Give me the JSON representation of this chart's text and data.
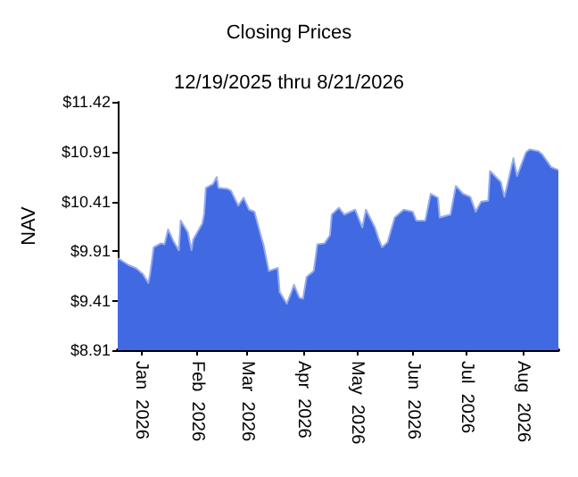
{
  "chart_data": {
    "type": "area",
    "title": "Closing Prices",
    "subtitle": "12/19/2025 thru 8/21/2026",
    "ylabel": "NAV",
    "x": [
      "2025-12-19",
      "2025-12-25",
      "2025-12-29",
      "2026-01-02",
      "2026-01-05",
      "2026-01-06",
      "2026-01-08",
      "2026-01-12",
      "2026-01-14",
      "2026-01-16",
      "2026-01-19",
      "2026-01-22",
      "2026-01-23",
      "2026-01-27",
      "2026-01-29",
      "2026-01-30",
      "2026-02-04",
      "2026-02-05",
      "2026-02-06",
      "2026-02-10",
      "2026-02-12",
      "2026-02-13",
      "2026-02-18",
      "2026-02-20",
      "2026-02-24",
      "2026-02-27",
      "2026-03-02",
      "2026-03-05",
      "2026-03-09",
      "2026-03-10",
      "2026-03-13",
      "2026-03-18",
      "2026-03-19",
      "2026-03-23",
      "2026-03-25",
      "2026-03-27",
      "2026-03-30",
      "2026-04-01",
      "2026-04-03",
      "2026-04-07",
      "2026-04-09",
      "2026-04-13",
      "2026-04-16",
      "2026-04-17",
      "2026-04-21",
      "2026-04-24",
      "2026-04-30",
      "2026-05-04",
      "2026-05-06",
      "2026-05-11",
      "2026-05-13",
      "2026-05-15",
      "2026-05-18",
      "2026-05-22",
      "2026-05-27",
      "2026-06-01",
      "2026-06-03",
      "2026-06-08",
      "2026-06-11",
      "2026-06-15",
      "2026-06-16",
      "2026-06-22",
      "2026-06-25",
      "2026-06-29",
      "2026-07-03",
      "2026-07-06",
      "2026-07-09",
      "2026-07-13",
      "2026-07-14",
      "2026-07-20",
      "2026-07-22",
      "2026-07-24",
      "2026-07-27",
      "2026-07-29",
      "2026-08-03",
      "2026-08-05",
      "2026-08-10",
      "2026-08-12",
      "2026-08-17",
      "2026-08-21"
    ],
    "series": [
      {
        "color": "#4169e1",
        "values": [
          9.84,
          9.77,
          9.74,
          9.68,
          9.59,
          9.68,
          9.95,
          9.99,
          9.98,
          10.13,
          10.01,
          9.92,
          10.22,
          10.1,
          9.92,
          10.03,
          10.19,
          10.28,
          10.55,
          10.59,
          10.66,
          10.55,
          10.54,
          10.52,
          10.37,
          10.45,
          10.33,
          10.31,
          10.04,
          9.98,
          9.71,
          9.74,
          9.5,
          9.38,
          9.47,
          9.57,
          9.44,
          9.43,
          9.65,
          9.71,
          9.98,
          9.99,
          10.07,
          10.28,
          10.35,
          10.28,
          10.33,
          10.15,
          10.33,
          10.15,
          10.04,
          9.95,
          10.0,
          10.25,
          10.33,
          10.31,
          10.22,
          10.22,
          10.49,
          10.45,
          10.25,
          10.28,
          10.57,
          10.49,
          10.46,
          10.31,
          10.41,
          10.42,
          10.72,
          10.61,
          10.46,
          10.61,
          10.85,
          10.67,
          10.91,
          10.94,
          10.92,
          10.89,
          10.76,
          10.73
        ]
      }
    ],
    "xlim": [
      "2025-12-19",
      "2026-08-21"
    ],
    "xticks": [
      {
        "value": "2026-01-01",
        "label": "Jan 2026"
      },
      {
        "value": "2026-02-01",
        "label": "Feb 2026"
      },
      {
        "value": "2026-03-01",
        "label": "Mar 2026"
      },
      {
        "value": "2026-04-01",
        "label": "Apr 2026"
      },
      {
        "value": "2026-05-01",
        "label": "May 2026"
      },
      {
        "value": "2026-06-01",
        "label": "Jun 2026"
      },
      {
        "value": "2026-07-01",
        "label": "Jul 2026"
      },
      {
        "value": "2026-08-01",
        "label": "Aug 2026"
      }
    ],
    "ylim": [
      8.91,
      11.42
    ],
    "yticks": [
      {
        "value": 8.91,
        "label": "$8.91"
      },
      {
        "value": 9.41,
        "label": "$9.41"
      },
      {
        "value": 9.91,
        "label": "$9.91"
      },
      {
        "value": 10.41,
        "label": "$10.41"
      },
      {
        "value": 10.91,
        "label": "$10.91"
      },
      {
        "value": 11.42,
        "label": "$11.42"
      }
    ],
    "grid": false,
    "marker": "none"
  }
}
